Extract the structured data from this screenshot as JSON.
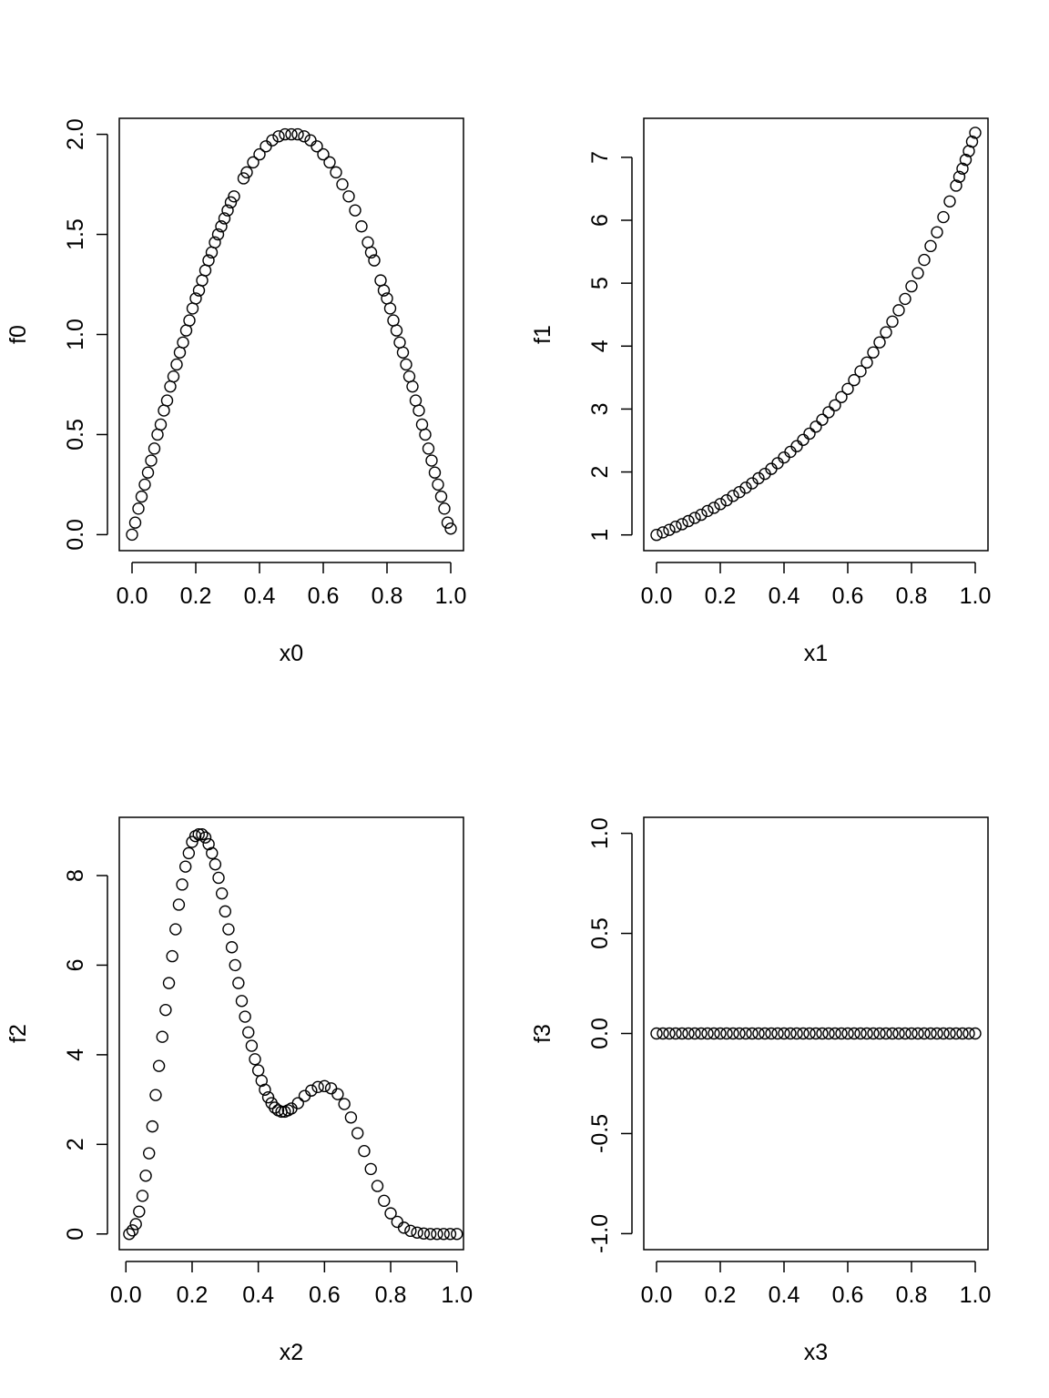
{
  "chart_data": [
    {
      "type": "scatter",
      "xlabel": "x0",
      "ylabel": "f0",
      "xlim": [
        -0.04,
        1.04
      ],
      "ylim": [
        -0.08,
        2.08
      ],
      "xticks": [
        "0.0",
        "0.2",
        "0.4",
        "0.6",
        "0.8",
        "1.0"
      ],
      "yticks": [
        "0.0",
        "0.5",
        "1.0",
        "1.5",
        "2.0"
      ],
      "marker_color": "#000000",
      "series": [
        {
          "x": [
            0.0,
            0.01,
            0.02,
            0.03,
            0.04,
            0.05,
            0.06,
            0.07,
            0.08,
            0.09,
            0.1,
            0.11,
            0.12,
            0.13,
            0.14,
            0.15,
            0.16,
            0.17,
            0.18,
            0.19,
            0.2,
            0.21,
            0.22,
            0.23,
            0.24,
            0.25,
            0.26,
            0.27,
            0.28,
            0.29,
            0.3,
            0.31,
            0.32,
            0.35,
            0.36,
            0.38,
            0.4,
            0.42,
            0.44,
            0.46,
            0.48,
            0.5,
            0.52,
            0.54,
            0.56,
            0.58,
            0.6,
            0.62,
            0.64,
            0.66,
            0.68,
            0.7,
            0.72,
            0.74,
            0.75,
            0.76,
            0.78,
            0.79,
            0.8,
            0.81,
            0.82,
            0.83,
            0.84,
            0.85,
            0.86,
            0.87,
            0.88,
            0.89,
            0.9,
            0.91,
            0.92,
            0.93,
            0.94,
            0.95,
            0.96,
            0.97,
            0.98,
            0.99,
            1.0
          ],
          "y": [
            0.0,
            0.06,
            0.13,
            0.19,
            0.25,
            0.31,
            0.37,
            0.43,
            0.5,
            0.55,
            0.62,
            0.67,
            0.74,
            0.79,
            0.85,
            0.91,
            0.96,
            1.02,
            1.07,
            1.13,
            1.18,
            1.22,
            1.27,
            1.32,
            1.37,
            1.41,
            1.46,
            1.5,
            1.54,
            1.58,
            1.62,
            1.66,
            1.69,
            1.78,
            1.81,
            1.86,
            1.9,
            1.94,
            1.97,
            1.99,
            2.0,
            2.0,
            2.0,
            1.99,
            1.97,
            1.94,
            1.9,
            1.86,
            1.81,
            1.75,
            1.69,
            1.62,
            1.54,
            1.46,
            1.41,
            1.37,
            1.27,
            1.22,
            1.18,
            1.13,
            1.07,
            1.02,
            0.96,
            0.91,
            0.85,
            0.79,
            0.74,
            0.67,
            0.62,
            0.55,
            0.5,
            0.43,
            0.37,
            0.31,
            0.25,
            0.19,
            0.13,
            0.06,
            0.03
          ]
        }
      ]
    },
    {
      "type": "scatter",
      "xlabel": "x1",
      "ylabel": "f1",
      "xlim": [
        -0.04,
        1.04
      ],
      "ylim": [
        0.75,
        7.62
      ],
      "xticks": [
        "0.0",
        "0.2",
        "0.4",
        "0.6",
        "0.8",
        "1.0"
      ],
      "yticks": [
        "1",
        "2",
        "3",
        "4",
        "5",
        "6",
        "7"
      ],
      "marker_color": "#000000",
      "series": [
        {
          "x": [
            0.0,
            0.02,
            0.04,
            0.06,
            0.08,
            0.1,
            0.12,
            0.14,
            0.16,
            0.18,
            0.2,
            0.22,
            0.24,
            0.26,
            0.28,
            0.3,
            0.32,
            0.34,
            0.36,
            0.38,
            0.4,
            0.42,
            0.44,
            0.46,
            0.48,
            0.5,
            0.52,
            0.54,
            0.56,
            0.58,
            0.6,
            0.62,
            0.64,
            0.66,
            0.68,
            0.7,
            0.72,
            0.74,
            0.76,
            0.78,
            0.8,
            0.82,
            0.84,
            0.86,
            0.88,
            0.9,
            0.92,
            0.94,
            0.95,
            0.96,
            0.97,
            0.98,
            0.99,
            1.0
          ],
          "y": [
            1.0,
            1.04,
            1.08,
            1.13,
            1.17,
            1.22,
            1.27,
            1.32,
            1.38,
            1.43,
            1.49,
            1.55,
            1.62,
            1.68,
            1.75,
            1.82,
            1.9,
            1.97,
            2.05,
            2.14,
            2.23,
            2.32,
            2.41,
            2.51,
            2.61,
            2.72,
            2.83,
            2.95,
            3.06,
            3.19,
            3.32,
            3.46,
            3.6,
            3.74,
            3.9,
            4.06,
            4.22,
            4.39,
            4.57,
            4.75,
            4.95,
            5.16,
            5.37,
            5.59,
            5.81,
            6.05,
            6.3,
            6.55,
            6.69,
            6.82,
            6.96,
            7.1,
            7.25,
            7.39
          ]
        }
      ]
    },
    {
      "type": "scatter",
      "xlabel": "x2",
      "ylabel": "f2",
      "xlim": [
        -0.02,
        1.02
      ],
      "ylim": [
        -0.35,
        9.3
      ],
      "xticks": [
        "0.0",
        "0.2",
        "0.4",
        "0.6",
        "0.8",
        "1.0"
      ],
      "yticks": [
        "0",
        "2",
        "4",
        "6",
        "8"
      ],
      "marker_color": "#000000",
      "series": [
        {
          "x": [
            0.01,
            0.02,
            0.03,
            0.04,
            0.05,
            0.06,
            0.07,
            0.08,
            0.09,
            0.1,
            0.11,
            0.12,
            0.13,
            0.14,
            0.15,
            0.16,
            0.17,
            0.18,
            0.19,
            0.2,
            0.21,
            0.22,
            0.23,
            0.24,
            0.25,
            0.26,
            0.27,
            0.28,
            0.29,
            0.3,
            0.31,
            0.32,
            0.33,
            0.34,
            0.35,
            0.36,
            0.37,
            0.38,
            0.39,
            0.4,
            0.41,
            0.42,
            0.43,
            0.44,
            0.45,
            0.46,
            0.47,
            0.48,
            0.49,
            0.5,
            0.52,
            0.54,
            0.56,
            0.58,
            0.6,
            0.62,
            0.64,
            0.66,
            0.68,
            0.7,
            0.72,
            0.74,
            0.76,
            0.78,
            0.8,
            0.82,
            0.84,
            0.86,
            0.88,
            0.9,
            0.92,
            0.94,
            0.96,
            0.98,
            1.0
          ],
          "y": [
            0.0,
            0.08,
            0.22,
            0.5,
            0.85,
            1.3,
            1.8,
            2.4,
            3.1,
            3.75,
            4.4,
            5.0,
            5.6,
            6.2,
            6.8,
            7.35,
            7.8,
            8.2,
            8.5,
            8.75,
            8.88,
            8.92,
            8.92,
            8.85,
            8.7,
            8.5,
            8.25,
            7.95,
            7.6,
            7.2,
            6.8,
            6.4,
            6.0,
            5.6,
            5.2,
            4.85,
            4.5,
            4.2,
            3.9,
            3.65,
            3.42,
            3.22,
            3.05,
            2.92,
            2.82,
            2.76,
            2.73,
            2.73,
            2.76,
            2.8,
            2.92,
            3.08,
            3.2,
            3.28,
            3.3,
            3.25,
            3.12,
            2.9,
            2.6,
            2.25,
            1.85,
            1.45,
            1.07,
            0.74,
            0.46,
            0.27,
            0.14,
            0.07,
            0.03,
            0.01,
            0.0,
            0.0,
            0.0,
            0.0,
            0.0
          ]
        }
      ]
    },
    {
      "type": "scatter",
      "xlabel": "x3",
      "ylabel": "f3",
      "xlim": [
        -0.04,
        1.04
      ],
      "ylim": [
        -1.08,
        1.08
      ],
      "xticks": [
        "0.0",
        "0.2",
        "0.4",
        "0.6",
        "0.8",
        "1.0"
      ],
      "yticks": [
        "-1.0",
        "-0.5",
        "0.0",
        "0.5",
        "1.0"
      ],
      "marker_color": "#000000",
      "series": [
        {
          "x": [
            0.0,
            0.02,
            0.04,
            0.06,
            0.08,
            0.1,
            0.12,
            0.14,
            0.16,
            0.18,
            0.2,
            0.22,
            0.24,
            0.26,
            0.28,
            0.3,
            0.32,
            0.34,
            0.36,
            0.38,
            0.4,
            0.42,
            0.44,
            0.46,
            0.48,
            0.5,
            0.52,
            0.54,
            0.56,
            0.58,
            0.6,
            0.62,
            0.64,
            0.66,
            0.68,
            0.7,
            0.72,
            0.74,
            0.76,
            0.78,
            0.8,
            0.82,
            0.84,
            0.86,
            0.88,
            0.9,
            0.92,
            0.94,
            0.96,
            0.98,
            1.0
          ],
          "y": [
            0.0,
            0.0,
            0.0,
            0.0,
            0.0,
            0.0,
            0.0,
            0.0,
            0.0,
            0.0,
            0.0,
            0.0,
            0.0,
            0.0,
            0.0,
            0.0,
            0.0,
            0.0,
            0.0,
            0.0,
            0.0,
            0.0,
            0.0,
            0.0,
            0.0,
            0.0,
            0.0,
            0.0,
            0.0,
            0.0,
            0.0,
            0.0,
            0.0,
            0.0,
            0.0,
            0.0,
            0.0,
            0.0,
            0.0,
            0.0,
            0.0,
            0.0,
            0.0,
            0.0,
            0.0,
            0.0,
            0.0,
            0.0,
            0.0,
            0.0,
            0.0
          ]
        }
      ]
    }
  ]
}
